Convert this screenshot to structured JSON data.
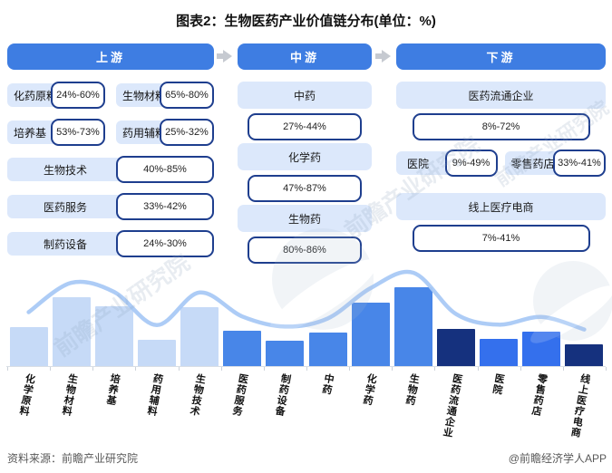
{
  "title": "图表2：生物医药产业价值链分布(单位：%)",
  "watermark": "前瞻产业研究院",
  "footer": {
    "source_left": "资料来源：前瞻产业研究院",
    "source_right": "@前瞻经济学人APP"
  },
  "flow": {
    "upstream": {
      "header": "上游",
      "row1": [
        {
          "label": "化药原料",
          "range": "24%-60%"
        },
        {
          "label": "生物材料",
          "range": "65%-80%"
        }
      ],
      "row2": [
        {
          "label": "培养基",
          "range": "53%-73%"
        },
        {
          "label": "药用辅料",
          "range": "25%-32%"
        }
      ],
      "row3": {
        "label": "生物技术",
        "range": "40%-85%"
      },
      "row4": {
        "label": "医药服务",
        "range": "33%-42%"
      },
      "row5": {
        "label": "制药设备",
        "range": "24%-30%"
      }
    },
    "midstream": {
      "header": "中游",
      "items": [
        {
          "label": "中药",
          "range": "27%-44%"
        },
        {
          "label": "化学药",
          "range": "47%-87%"
        },
        {
          "label": "生物药",
          "range": "80%-86%"
        }
      ]
    },
    "downstream": {
      "header": "下游",
      "row1": {
        "label": "医药流通企业",
        "range": "8%-72%"
      },
      "row2": [
        {
          "label": "医院",
          "range": "9%-49%"
        },
        {
          "label": "零售药店",
          "range": "33%-41%"
        }
      ],
      "row3": {
        "label": "线上医疗电商",
        "range": "7%-41%"
      }
    }
  },
  "chart_data": {
    "type": "bar",
    "title": "生物医药产业价值链分布",
    "categories": [
      "化学原料",
      "生物材料",
      "培养基",
      "药用辅料",
      "生物技术",
      "医药服务",
      "制药设备",
      "中药",
      "化学药",
      "生物药",
      "医药流通企业",
      "医院",
      "零售药店",
      "线上医疗电商"
    ],
    "values": [
      42,
      72.5,
      63,
      28.5,
      62.5,
      37.5,
      27,
      35.5,
      67,
      83,
      40,
      29,
      37,
      24
    ],
    "unit": "%",
    "ylim": [
      0,
      100
    ],
    "groups": [
      "light",
      "light",
      "light",
      "light",
      "light",
      "medium",
      "medium",
      "medium",
      "medium",
      "medium",
      "navy",
      "bright",
      "bright",
      "navy"
    ],
    "palette": {
      "light": "#c6daf7",
      "medium": "#4886e8",
      "bright": "#3470ed",
      "navy": "#15317e",
      "line": "#a9c9f5"
    },
    "line_overlay": true,
    "legend": [],
    "xlabel": "",
    "ylabel": ""
  }
}
